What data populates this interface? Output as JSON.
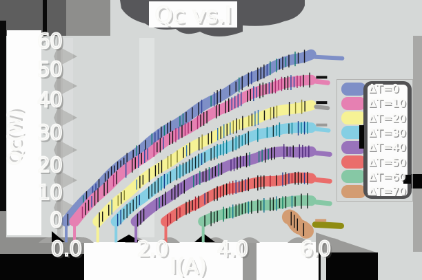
{
  "title": "Qc vs.I",
  "axes": {
    "x_label": "I(A)",
    "y_label": "Qc(W)",
    "x_ticks": [
      "0.0",
      "2.0",
      "4.0",
      "6.0"
    ],
    "y_ticks": [
      "60",
      "50",
      "40",
      "30",
      "20",
      "10",
      "0"
    ]
  },
  "legend": {
    "entries": [
      {
        "label": "ΔT=0",
        "color": "#7e8fc7"
      },
      {
        "label": "ΔT=10",
        "color": "#e680b2"
      },
      {
        "label": "ΔT=20",
        "color": "#f6f295"
      },
      {
        "label": "ΔT=30",
        "color": "#85cfe4"
      },
      {
        "label": "ΔT=40",
        "color": "#9973bb"
      },
      {
        "label": "ΔT=50",
        "color": "#ea6d6b"
      },
      {
        "label": "ΔT=60",
        "color": "#86c8a5"
      },
      {
        "label": "ΔT=70",
        "color": "#d39c72"
      }
    ]
  },
  "colors": {
    "background": "#d5d8d7",
    "shadow_dark": "#57575a",
    "shadow_mid": "#8e8e8c",
    "panel_white": "#fdfdfd",
    "black_patch": "#050505",
    "olive_stub": "#8f8c12"
  },
  "chart_data": {
    "type": "line",
    "title": "Qc vs.I",
    "xlabel": "I(A)",
    "ylabel": "Qc(W)",
    "xlim": [
      0,
      6.7
    ],
    "ylim": [
      -5,
      60
    ],
    "x_tick_values": [
      0.0,
      2.0,
      4.0,
      6.0
    ],
    "y_tick_values": [
      0,
      10,
      20,
      30,
      40,
      50,
      60
    ],
    "grid": false,
    "legend_position": "right",
    "series": [
      {
        "name": "ΔT=0",
        "color": "#7e8fc7",
        "width": 15,
        "start_dip": true,
        "tick_colors": [
          "#15151e",
          "#2d3f94",
          "#0e7a6e"
        ],
        "points": [
          [
            0,
            0
          ],
          [
            0.5,
            8
          ],
          [
            1,
            15
          ],
          [
            1.5,
            21
          ],
          [
            2,
            26.5
          ],
          [
            2.5,
            31.5
          ],
          [
            3,
            36
          ],
          [
            3.5,
            40.5
          ],
          [
            4,
            44.5
          ],
          [
            4.5,
            48.5
          ],
          [
            5,
            52
          ],
          [
            5.5,
            54.5
          ],
          [
            5.9,
            56
          ]
        ],
        "stub": {
          "x1": 6.0,
          "x2": 6.65,
          "y": 55.2,
          "w": 6
        }
      },
      {
        "name": "ΔT=10",
        "color": "#e680b2",
        "width": 15,
        "start_dip": true,
        "tick_colors": [
          "#131313",
          "#a62c6e",
          "#274b9e"
        ],
        "points": [
          [
            0.2,
            0
          ],
          [
            0.7,
            8
          ],
          [
            1.2,
            14.5
          ],
          [
            1.7,
            20
          ],
          [
            2.2,
            25
          ],
          [
            2.7,
            29.5
          ],
          [
            3.2,
            33.5
          ],
          [
            3.7,
            37.5
          ],
          [
            4.2,
            41
          ],
          [
            4.7,
            44
          ],
          [
            5.2,
            46.2
          ],
          [
            5.9,
            47.5
          ]
        ],
        "stub": {
          "x1": 6.02,
          "x2": 6.3,
          "y": 47,
          "w": 7,
          "dash_color": "#111111"
        }
      },
      {
        "name": "ΔT=20",
        "color": "#f6f295",
        "width": 15,
        "start_dip": true,
        "tick_colors": [
          "#111111",
          "#8a8530",
          "#2b6fae"
        ],
        "points": [
          [
            0.76,
            0
          ],
          [
            1.25,
            7
          ],
          [
            1.75,
            13
          ],
          [
            2.25,
            18
          ],
          [
            2.75,
            22.5
          ],
          [
            3.25,
            26.5
          ],
          [
            3.75,
            30
          ],
          [
            4.25,
            33
          ],
          [
            4.75,
            35.5
          ],
          [
            5.25,
            37.5
          ],
          [
            5.9,
            39
          ]
        ],
        "stub": {
          "x1": 6.02,
          "x2": 6.3,
          "y": 38.5,
          "w": 6,
          "color": "#9a9a98",
          "dash_color": "#111111"
        }
      },
      {
        "name": "ΔT=30",
        "color": "#85cfe4",
        "width": 15,
        "start_dip": true,
        "tick_colors": [
          "#102a2e",
          "#0c7d92",
          "#123b8a"
        ],
        "points": [
          [
            1.2,
            0
          ],
          [
            1.7,
            6.5
          ],
          [
            2.2,
            12
          ],
          [
            2.7,
            16.5
          ],
          [
            3.2,
            20.5
          ],
          [
            3.7,
            24
          ],
          [
            4.2,
            27
          ],
          [
            4.7,
            29.5
          ],
          [
            5.2,
            31
          ],
          [
            5.9,
            31.5
          ]
        ],
        "stub": {
          "x1": 6.02,
          "x2": 6.32,
          "y": 31,
          "w": 6,
          "dash_color": "#9a9a98"
        }
      },
      {
        "name": "ΔT=40",
        "color": "#9973bb",
        "width": 15,
        "start_dip": true,
        "tick_colors": [
          "#121212",
          "#4b2878",
          "#0e7a6e"
        ],
        "points": [
          [
            1.68,
            0
          ],
          [
            2.2,
            6
          ],
          [
            2.7,
            10.5
          ],
          [
            3.2,
            14.5
          ],
          [
            3.7,
            17.5
          ],
          [
            4.2,
            20
          ],
          [
            4.7,
            22
          ],
          [
            5.2,
            23.5
          ],
          [
            5.9,
            23.5
          ]
        ],
        "stub": {
          "x1": 6.02,
          "x2": 6.35,
          "y": 23,
          "w": 7
        }
      },
      {
        "name": "ΔT=50",
        "color": "#ea6d6b",
        "width": 15,
        "start_dip": true,
        "tick_colors": [
          "#141111",
          "#a01c2e",
          "#243a8e"
        ],
        "points": [
          [
            2.4,
            0
          ],
          [
            2.9,
            4.5
          ],
          [
            3.4,
            8
          ],
          [
            3.9,
            11
          ],
          [
            4.4,
            12.5
          ],
          [
            4.9,
            13.5
          ],
          [
            5.4,
            14.5
          ],
          [
            5.9,
            14.5
          ]
        ],
        "stub": {
          "x1": 6.02,
          "x2": 6.35,
          "y": 14,
          "w": 7
        }
      },
      {
        "name": "ΔT=60",
        "color": "#86c8a5",
        "width": 15,
        "start_dip": true,
        "tick_colors": [
          "#102018",
          "#0d7d5c",
          "#0e6f8a"
        ],
        "points": [
          [
            3.3,
            0
          ],
          [
            3.8,
            2.5
          ],
          [
            4.3,
            4.5
          ],
          [
            4.8,
            5.5
          ],
          [
            5.3,
            6.5
          ],
          [
            5.9,
            7
          ]
        ],
        "stub": {
          "x1": 6.02,
          "x2": 6.35,
          "y": 6.5,
          "w": 7
        }
      },
      {
        "name": "ΔT=70",
        "color": "#d39c72",
        "width": 22,
        "start_dip": false,
        "tick_colors": [
          "#151210",
          "#8a5a28",
          "#6b6b10"
        ],
        "points": [
          [
            5.38,
            1.5
          ],
          [
            5.5,
            0
          ],
          [
            5.62,
            -1.8
          ],
          [
            5.78,
            -3.2
          ]
        ],
        "stub": {
          "x1": 6.0,
          "x2": 6.62,
          "y": -1.0,
          "w": 9,
          "color": "#8f8c12",
          "dash_color": "#d39c72"
        }
      }
    ]
  }
}
